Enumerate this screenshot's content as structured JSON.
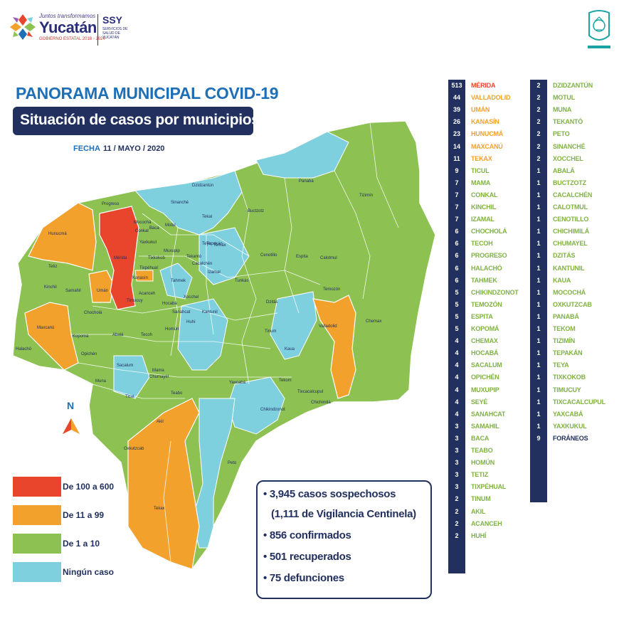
{
  "header": {
    "logo_line1": "Juntos transformamos",
    "logo_name": "Yucatán",
    "logo_line3": "GOBIERNO ESTATAL 2018 - 2024",
    "ssy": "SSY",
    "ssy_sub": "SERVICIOS DE SALUD DE YUCATÁN"
  },
  "title": "PANORAMA MUNICIPAL COVID-19",
  "subtitle": "Situación de casos por municipios",
  "date": {
    "label": "FECHA",
    "value": "11 / MAYO / 2020"
  },
  "north": "N",
  "legend": [
    {
      "label": "De 100 a 600",
      "color": "#e8452c"
    },
    {
      "label": "De 11 a 99",
      "color": "#f2a12c"
    },
    {
      "label": "De 1 a 10",
      "color": "#8dc152"
    },
    {
      "label": "Ningún caso",
      "color": "#7fd0de"
    }
  ],
  "summary": [
    "• 3,945 casos sospechosos",
    "(1,111 de Vigilancia Centinela)",
    "• 856 confirmados",
    "• 501 recuperados",
    "• 75 defunciones"
  ],
  "map_labels": [
    "Progreso",
    "Mocochá",
    "Conkal",
    "Baca",
    "Motul",
    "Dzidzantún",
    "Sinanché",
    "Panabá",
    "Tizimín",
    "Hunucmá",
    "Mérida",
    "Kanasín",
    "Umán",
    "Tetiz",
    "Kinchil",
    "Samahil",
    "Chocholá",
    "Maxcanú",
    "Halachó",
    "Kopomá",
    "Opichén",
    "Abalá",
    "Tecoh",
    "Muna",
    "Sacalum",
    "Ticul",
    "Tekax",
    "Akil",
    "Oxkutzcab",
    "Teabo",
    "Chumayel",
    "Mama",
    "Peto",
    "Yaxcabá",
    "Tekom",
    "Chikindzonot",
    "Tixcacalcupul",
    "Chichimilá",
    "Valladolid",
    "Chemax",
    "Temozón",
    "Calotmul",
    "Espita",
    "Cenotillo",
    "Buctzotz",
    "Izamal",
    "Tekantó",
    "Teya",
    "Temax",
    "Dzitás",
    "Tinum",
    "Kaua",
    "Hocabá",
    "Sanahcat",
    "Homún",
    "Huhí",
    "Kantunil",
    "Xocchel",
    "Tahmek",
    "Acanceh",
    "Timucuy",
    "Tixkokob",
    "Yaxkukul",
    "Muxupip",
    "Cacalchén",
    "Tixpéhual",
    "Tepakán",
    "Tekal",
    "Tunkás"
  ],
  "list_left": [
    {
      "count": "513",
      "name": "MÉRIDA",
      "tier": "red"
    },
    {
      "count": "44",
      "name": "VALLADOLID",
      "tier": "orange"
    },
    {
      "count": "39",
      "name": "UMÁN",
      "tier": "orange"
    },
    {
      "count": "26",
      "name": "KANASÍN",
      "tier": "orange"
    },
    {
      "count": "23",
      "name": "HUNUCMÁ",
      "tier": "orange"
    },
    {
      "count": "14",
      "name": "MAXCANÚ",
      "tier": "orange"
    },
    {
      "count": "11",
      "name": "TEKAX",
      "tier": "orange"
    },
    {
      "count": "9",
      "name": "TICUL",
      "tier": "green"
    },
    {
      "count": "7",
      "name": "MAMA",
      "tier": "green"
    },
    {
      "count": "7",
      "name": "CONKAL",
      "tier": "green"
    },
    {
      "count": "7",
      "name": "KINCHIL",
      "tier": "green"
    },
    {
      "count": "7",
      "name": "IZAMAL",
      "tier": "green"
    },
    {
      "count": "6",
      "name": "CHOCHOLÁ",
      "tier": "green"
    },
    {
      "count": "6",
      "name": "TECOH",
      "tier": "green"
    },
    {
      "count": "6",
      "name": "PROGRESO",
      "tier": "green"
    },
    {
      "count": "6",
      "name": "HALACHÓ",
      "tier": "green"
    },
    {
      "count": "6",
      "name": "TAHMEK",
      "tier": "green"
    },
    {
      "count": "5",
      "name": "CHIKINDZONOT",
      "tier": "green"
    },
    {
      "count": "5",
      "name": "TEMOZÓN",
      "tier": "green"
    },
    {
      "count": "5",
      "name": "ESPITA",
      "tier": "green"
    },
    {
      "count": "5",
      "name": "KOPOMÁ",
      "tier": "green"
    },
    {
      "count": "4",
      "name": "CHEMAX",
      "tier": "green"
    },
    {
      "count": "4",
      "name": "HOCABÁ",
      "tier": "green"
    },
    {
      "count": "4",
      "name": "SACALUM",
      "tier": "green"
    },
    {
      "count": "4",
      "name": "OPICHÉN",
      "tier": "green"
    },
    {
      "count": "4",
      "name": "MUXUPIP",
      "tier": "green"
    },
    {
      "count": "4",
      "name": "SEYÉ",
      "tier": "green"
    },
    {
      "count": "4",
      "name": "SANAHCAT",
      "tier": "green"
    },
    {
      "count": "3",
      "name": "SAMAHIL",
      "tier": "green"
    },
    {
      "count": "3",
      "name": "BACA",
      "tier": "green"
    },
    {
      "count": "3",
      "name": "TEABO",
      "tier": "green"
    },
    {
      "count": "3",
      "name": "HOMÚN",
      "tier": "green"
    },
    {
      "count": "3",
      "name": "TETIZ",
      "tier": "green"
    },
    {
      "count": "3",
      "name": "TIXPÉHUAL",
      "tier": "green"
    },
    {
      "count": "2",
      "name": "TINUM",
      "tier": "green"
    },
    {
      "count": "2",
      "name": "AKIL",
      "tier": "green"
    },
    {
      "count": "2",
      "name": "ACANCEH",
      "tier": "green"
    },
    {
      "count": "2",
      "name": "HUHÍ",
      "tier": "green"
    }
  ],
  "list_right": [
    {
      "count": "2",
      "name": "DZIDZANTÚN",
      "tier": "green"
    },
    {
      "count": "2",
      "name": "MOTUL",
      "tier": "green"
    },
    {
      "count": "2",
      "name": "MUNA",
      "tier": "green"
    },
    {
      "count": "2",
      "name": "TEKANTÓ",
      "tier": "green"
    },
    {
      "count": "2",
      "name": "PETO",
      "tier": "green"
    },
    {
      "count": "2",
      "name": "SINANCHÉ",
      "tier": "green"
    },
    {
      "count": "2",
      "name": "XOCCHEL",
      "tier": "green"
    },
    {
      "count": "1",
      "name": "ABALÁ",
      "tier": "green"
    },
    {
      "count": "1",
      "name": "BUCTZOTZ",
      "tier": "green"
    },
    {
      "count": "1",
      "name": "CACALCHÉN",
      "tier": "green"
    },
    {
      "count": "1",
      "name": "CALOTMUL",
      "tier": "green"
    },
    {
      "count": "1",
      "name": "CENOTILLO",
      "tier": "green"
    },
    {
      "count": "1",
      "name": "CHICHIMILÁ",
      "tier": "green"
    },
    {
      "count": "1",
      "name": "CHUMAYEL",
      "tier": "green"
    },
    {
      "count": "1",
      "name": "DZITÁS",
      "tier": "green"
    },
    {
      "count": "1",
      "name": "KANTUNIL",
      "tier": "green"
    },
    {
      "count": "1",
      "name": "KAUA",
      "tier": "green"
    },
    {
      "count": "1",
      "name": "MOCOCHÁ",
      "tier": "green"
    },
    {
      "count": "1",
      "name": "OXKUTZCAB",
      "tier": "green"
    },
    {
      "count": "1",
      "name": "PANABÁ",
      "tier": "green"
    },
    {
      "count": "1",
      "name": "TEKOM",
      "tier": "green"
    },
    {
      "count": "1",
      "name": "TIZIMÍN",
      "tier": "green"
    },
    {
      "count": "1",
      "name": "TEPAKÁN",
      "tier": "green"
    },
    {
      "count": "1",
      "name": "TEYA",
      "tier": "green"
    },
    {
      "count": "1",
      "name": "TIXKOKOB",
      "tier": "green"
    },
    {
      "count": "1",
      "name": "TIMUCUY",
      "tier": "green"
    },
    {
      "count": "1",
      "name": "TIXCACALCUPUL",
      "tier": "green"
    },
    {
      "count": "1",
      "name": "YAXCABÁ",
      "tier": "green"
    },
    {
      "count": "1",
      "name": "YAXKUKUL",
      "tier": "green"
    },
    {
      "count": "9",
      "name": "FORÁNEOS",
      "tier": "navy"
    }
  ]
}
